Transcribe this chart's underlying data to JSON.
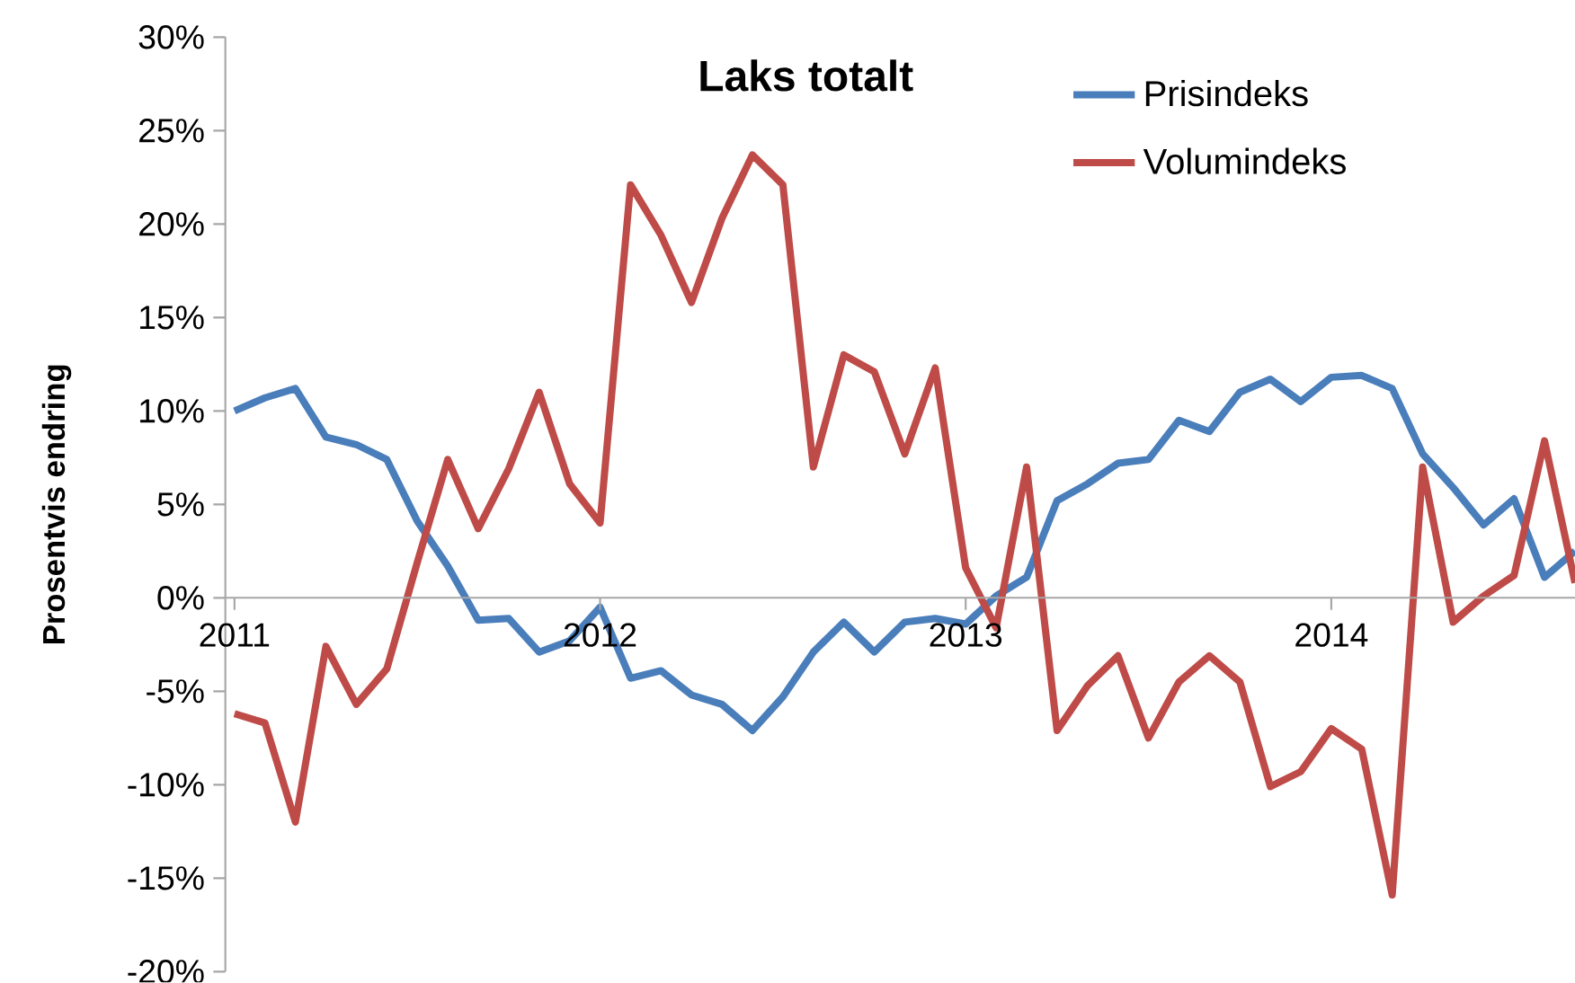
{
  "chart_data": {
    "type": "line",
    "title": "Laks totalt",
    "ylabel": "Prosentvis endring",
    "categories": [
      "2011",
      null,
      null,
      null,
      null,
      null,
      null,
      null,
      null,
      null,
      null,
      null,
      "2012",
      null,
      null,
      null,
      null,
      null,
      null,
      null,
      null,
      null,
      null,
      null,
      "2013",
      null,
      null,
      null,
      null,
      null,
      null,
      null,
      null,
      null,
      null,
      null,
      "2014",
      null,
      null,
      null,
      null,
      null,
      null,
      null,
      null
    ],
    "series": [
      {
        "name": "Prisindeks",
        "color": "#4a7ebb",
        "values": [
          10.0,
          10.7,
          11.2,
          8.6,
          8.2,
          7.4,
          4.1,
          1.7,
          -1.2,
          -1.1,
          -2.9,
          -2.3,
          -0.5,
          -4.3,
          -3.9,
          -5.2,
          -5.7,
          -7.1,
          -5.3,
          -2.9,
          -1.3,
          -2.9,
          -1.3,
          -1.1,
          -1.4,
          0.1,
          1.1,
          5.2,
          6.1,
          7.2,
          7.4,
          9.5,
          8.9,
          11.0,
          11.7,
          10.5,
          11.8,
          11.9,
          11.2,
          7.7,
          5.9,
          3.9,
          5.3,
          1.1,
          2.5
        ]
      },
      {
        "name": "Volumindeks",
        "color": "#be4b48",
        "values": [
          -6.2,
          -6.7,
          -12.0,
          -2.6,
          -5.7,
          -3.8,
          1.9,
          7.4,
          3.7,
          6.9,
          11.0,
          6.1,
          4.0,
          22.1,
          19.4,
          15.8,
          20.3,
          23.7,
          22.1,
          7.0,
          13.0,
          12.1,
          7.7,
          12.3,
          1.6,
          -1.6,
          7.0,
          -7.1,
          -4.7,
          -3.1,
          -7.5,
          -4.5,
          -3.1,
          -4.5,
          -10.1,
          -9.3,
          -7.0,
          -8.1,
          -15.9,
          7.0,
          -1.3,
          0.1,
          1.2,
          8.4,
          0.8
        ]
      }
    ],
    "ylim": [
      -20,
      30
    ],
    "yticks": [
      {
        "value": -20,
        "label": "-20%"
      },
      {
        "value": -15,
        "label": "-15%"
      },
      {
        "value": -10,
        "label": "-10%"
      },
      {
        "value": -5,
        "label": "-5%"
      },
      {
        "value": 0,
        "label": "0%"
      },
      {
        "value": 5,
        "label": "5%"
      },
      {
        "value": 10,
        "label": "10%"
      },
      {
        "value": 15,
        "label": "15%"
      },
      {
        "value": 20,
        "label": "20%"
      },
      {
        "value": 25,
        "label": "25%"
      },
      {
        "value": 30,
        "label": "30%"
      }
    ],
    "legend": "top right",
    "grid": false,
    "marker": "none",
    "line_style": "solid"
  }
}
